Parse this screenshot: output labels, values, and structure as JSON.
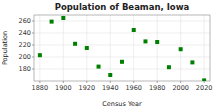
{
  "chart_data": {
    "type": "scatter",
    "title": "Population of Beaman, Iowa",
    "xlabel": "Census Year",
    "ylabel": "Population",
    "x": [
      1880,
      1890,
      1900,
      1910,
      1920,
      1930,
      1940,
      1950,
      1960,
      1970,
      1980,
      1990,
      2000,
      2010,
      2020
    ],
    "values": [
      203,
      259,
      265,
      222,
      215,
      184,
      170,
      192,
      245,
      226,
      225,
      183,
      213,
      191,
      161
    ],
    "color": "#008000",
    "marker": "square",
    "xlim": [
      1875,
      2025
    ],
    "ylim": [
      160,
      270
    ],
    "xticks": [
      1880,
      1900,
      1920,
      1940,
      1960,
      1980,
      2000,
      2020
    ],
    "yticks": [
      180,
      200,
      220,
      240,
      260
    ],
    "grid": true
  }
}
